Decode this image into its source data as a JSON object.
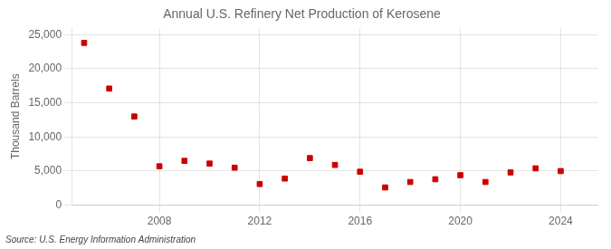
{
  "chart_data": {
    "type": "scatter",
    "title": "Annual U.S. Refinery Net Production of Kerosene",
    "ylabel": "Thousand Barrels",
    "source": "Source: U.S. Energy Information Administration",
    "x": [
      2005,
      2006,
      2007,
      2008,
      2009,
      2010,
      2011,
      2012,
      2013,
      2014,
      2015,
      2016,
      2017,
      2018,
      2019,
      2020,
      2021,
      2022,
      2023,
      2024
    ],
    "values": [
      23800,
      17100,
      13000,
      5700,
      6500,
      6100,
      5500,
      3100,
      3900,
      6900,
      5900,
      4900,
      2600,
      3400,
      3800,
      4400,
      3400,
      4800,
      5400,
      5000
    ],
    "color": "#cc0000",
    "marker": "square",
    "xlim": [
      2004.5,
      2025.5
    ],
    "xticks": [
      2008,
      2012,
      2016,
      2020,
      2024
    ],
    "ylim": [
      0,
      26000
    ],
    "yticks": [
      0,
      {
        "value": 5000,
        "label": "5,000"
      },
      {
        "value": 10000,
        "label": "10,000"
      },
      {
        "value": 15000,
        "label": "15,000"
      },
      {
        "value": 20000,
        "label": "20,000"
      },
      {
        "value": 25000,
        "label": "25,000"
      }
    ],
    "grid": true
  }
}
